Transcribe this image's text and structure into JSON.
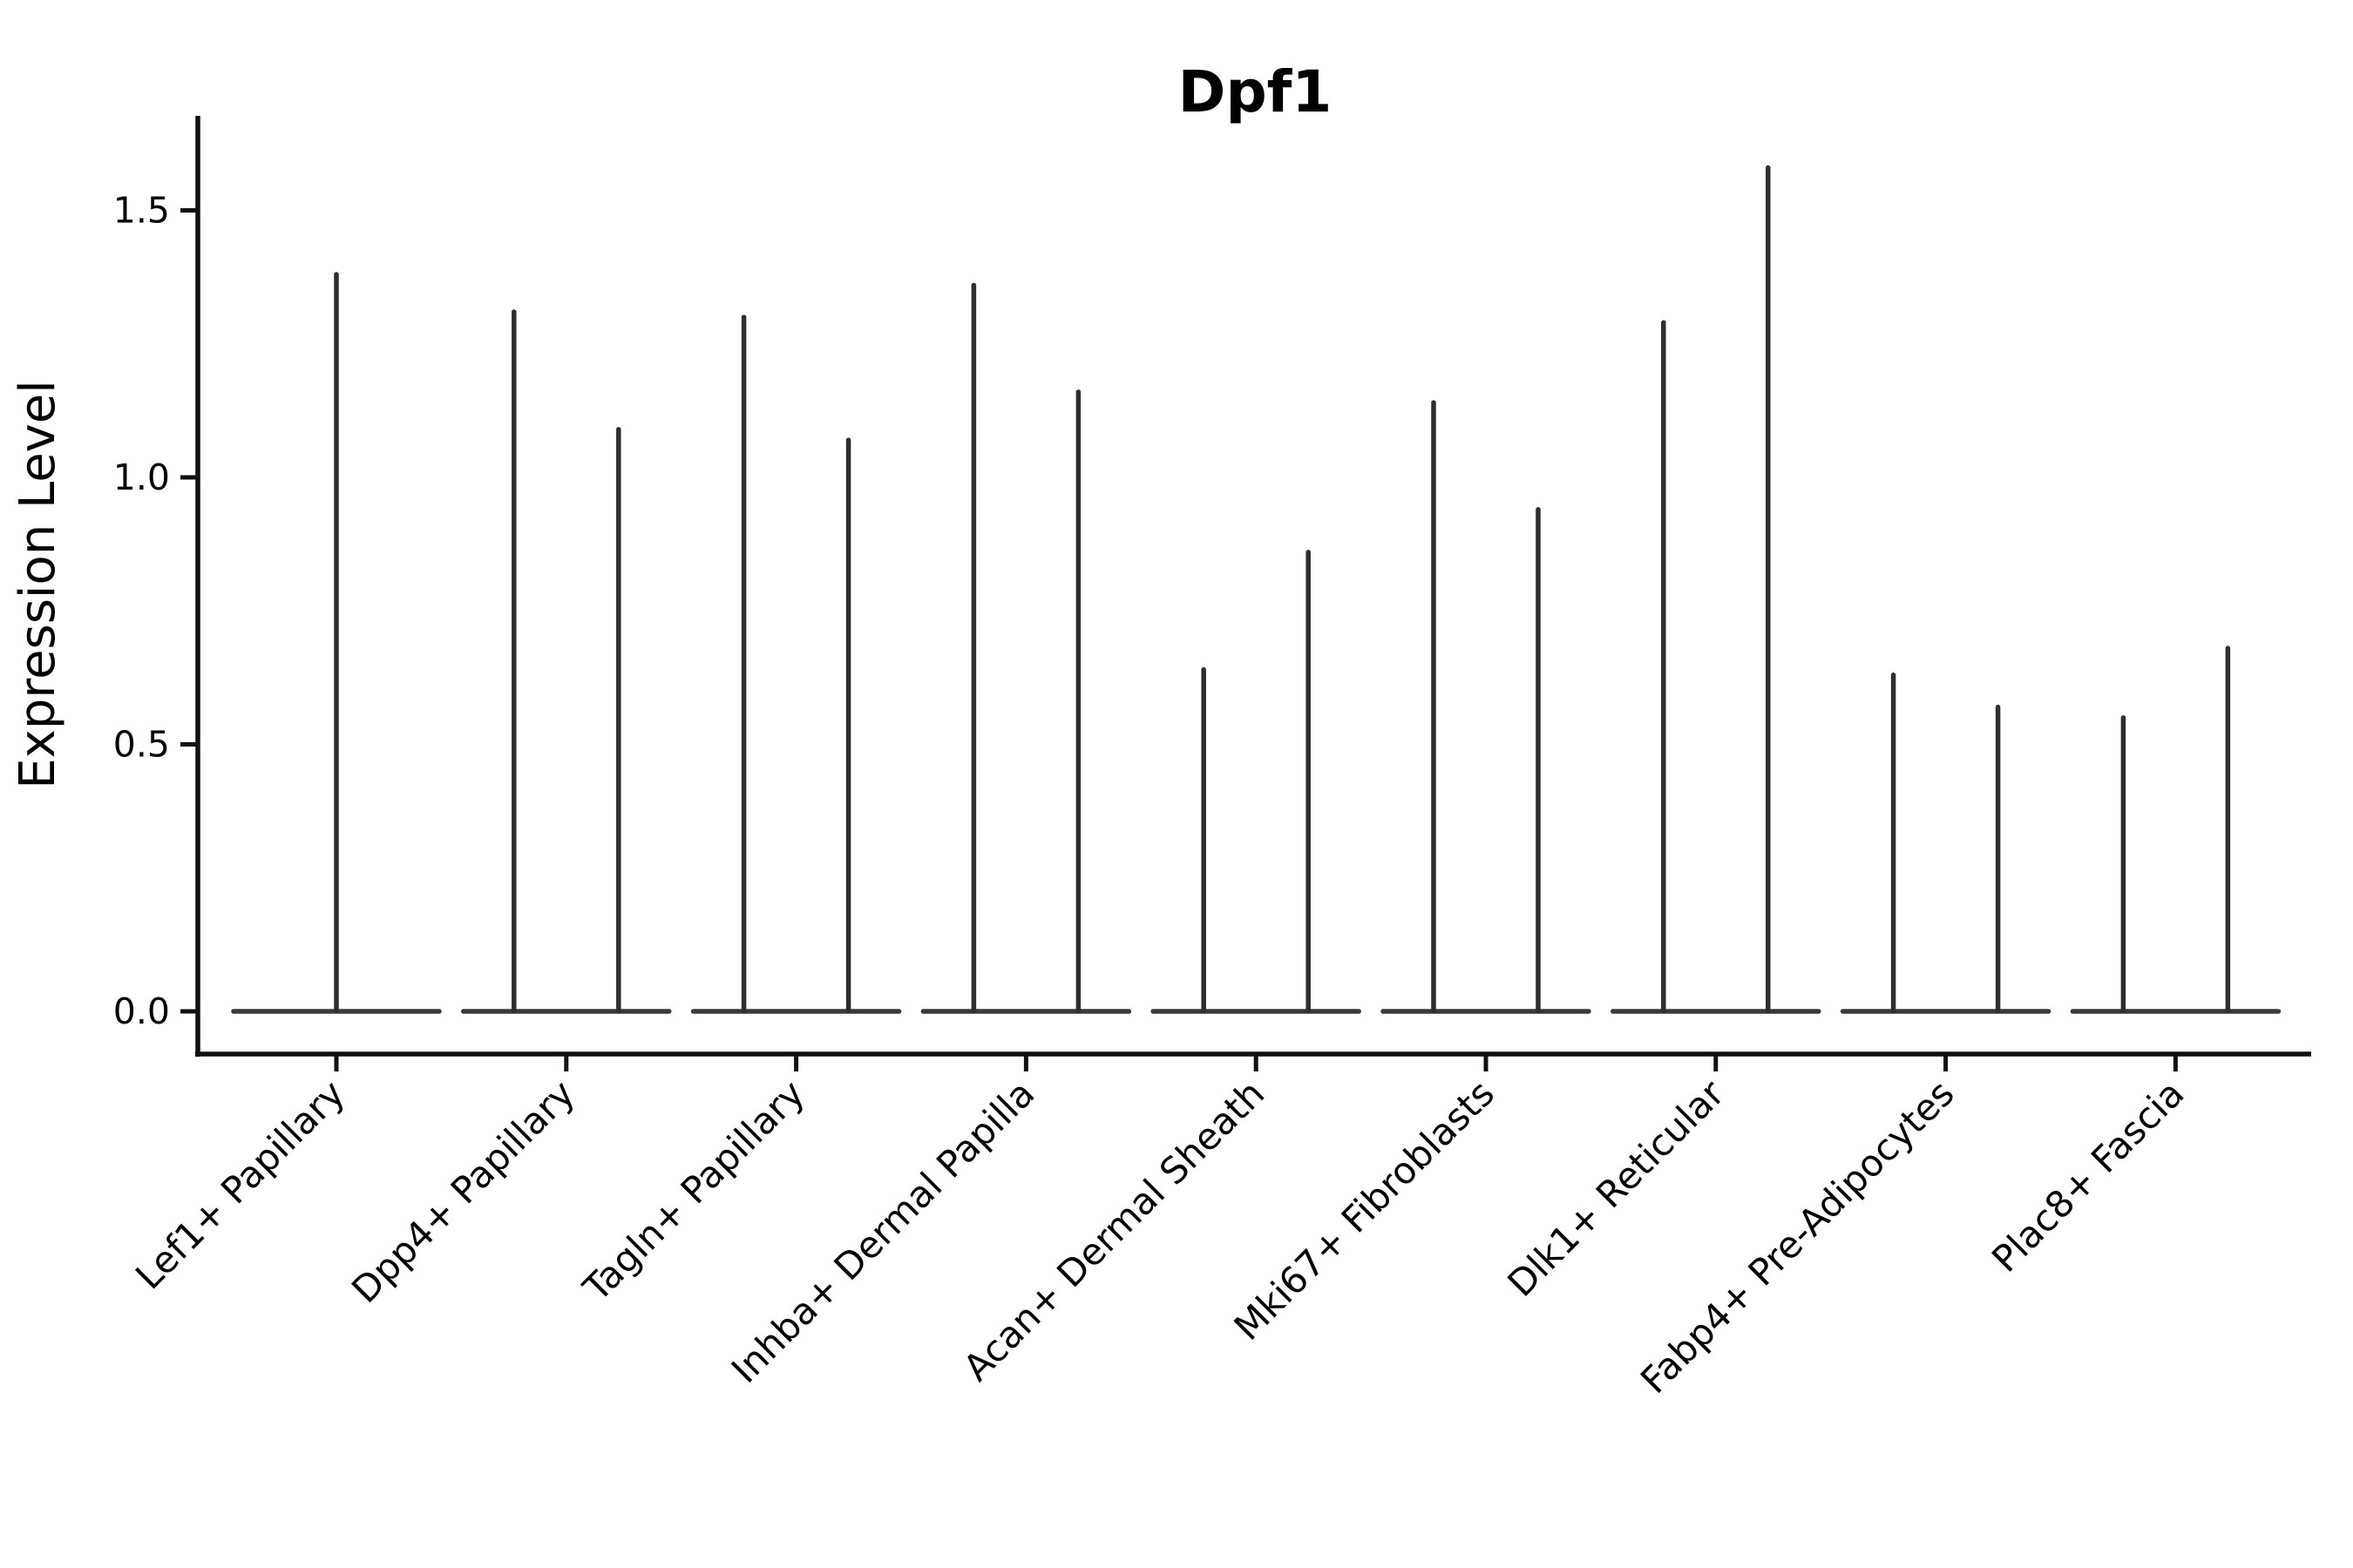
{
  "title": "Dpf1",
  "y_axis": {
    "label": "Expression Level",
    "tick_labels": [
      "0.0",
      "0.5",
      "1.0",
      "1.5"
    ]
  },
  "colors": {
    "violin_stroke": "#2e2e2e",
    "baseline_stroke": "#3a3a3a",
    "axis": "#111111",
    "background": "#ffffff"
  },
  "chart_data": {
    "type": "violin",
    "title": "Dpf1",
    "xlabel": "",
    "ylabel": "Expression Level",
    "ylim": [
      -0.08,
      1.68
    ],
    "yticks": [
      0.0,
      0.5,
      1.0,
      1.5
    ],
    "grid": false,
    "legend": "none",
    "note": "Collapsed single-cell expression violins: each violin is a flat base at 0 with a thin density spike rising to its peak expression value. Categories with two spikes contain a left/right pair of half-width violins.",
    "baseline_value": 0.0,
    "categories": [
      "Lef1+ Papillary",
      "Dpp4+ Papillary",
      "Tagln+ Papillary",
      "Inhba+ Dermal Papilla",
      "Acan+ Dermal Sheath",
      "Mki67+ Fibroblasts",
      "Dlk1+ Reticular",
      "Fabp4+ Pre-Adipocytes",
      "Plac8+ Fascia"
    ],
    "violins": [
      {
        "category": "Lef1+ Papillary",
        "peaks": [
          1.38
        ]
      },
      {
        "category": "Dpp4+ Papillary",
        "peaks": [
          1.31,
          1.09
        ]
      },
      {
        "category": "Tagln+ Papillary",
        "peaks": [
          1.3,
          1.07
        ]
      },
      {
        "category": "Inhba+ Dermal Papilla",
        "peaks": [
          1.36,
          1.16
        ]
      },
      {
        "category": "Acan+ Dermal Sheath",
        "peaks": [
          0.64,
          0.86
        ]
      },
      {
        "category": "Mki67+ Fibroblasts",
        "peaks": [
          1.14,
          0.94
        ]
      },
      {
        "category": "Dlk1+ Reticular",
        "peaks": [
          1.29,
          1.58
        ]
      },
      {
        "category": "Fabp4+ Pre-Adipocytes",
        "peaks": [
          0.63,
          0.57
        ]
      },
      {
        "category": "Plac8+ Fascia",
        "peaks": [
          0.55,
          0.68
        ]
      }
    ]
  }
}
